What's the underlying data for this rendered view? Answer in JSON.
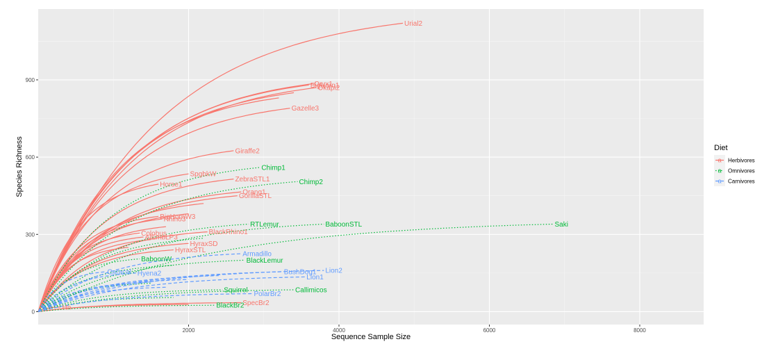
{
  "chart_data": {
    "type": "line",
    "title": "",
    "xlabel": "Sequence Sample Size",
    "ylabel": "Species Richness",
    "xlim": [
      0,
      8850
    ],
    "ylim": [
      -50,
      1175
    ],
    "xticks": [
      2000,
      4000,
      6000,
      8000
    ],
    "yticks": [
      0,
      300,
      600,
      900
    ],
    "xtick_labels": [
      "2000",
      "4000",
      "6000",
      "8000"
    ],
    "ytick_labels": [
      "0",
      "300",
      "600",
      "900"
    ],
    "legend": {
      "title": "Diet",
      "position": "right",
      "entries": [
        {
          "name": "Herbivores",
          "glyph": "a",
          "color": "#F8766D",
          "dash": ""
        },
        {
          "name": "Omnivores",
          "glyph": "a",
          "color": "#00BA38",
          "dash": "1.5,2.5"
        },
        {
          "name": "Carnivores",
          "glyph": "a",
          "color": "#619CFF",
          "dash": "5,3"
        }
      ]
    },
    "series": [
      {
        "name": "Urial2",
        "group": "Herbivores",
        "end": [
          4850,
          1120
        ]
      },
      {
        "name": "BigHorn1",
        "group": "Herbivores",
        "end": [
          3600,
          880
        ]
      },
      {
        "name": "Oryx1",
        "group": "Herbivores",
        "end": [
          3650,
          885
        ]
      },
      {
        "name": "Okapi2",
        "group": "Herbivores",
        "end": [
          3700,
          870
        ]
      },
      {
        "name": "Gazelle3",
        "group": "Herbivores",
        "end": [
          3350,
          790
        ]
      },
      {
        "name": "Giraffe2",
        "group": "Herbivores",
        "end": [
          2600,
          625
        ]
      },
      {
        "name": "SpgbkW",
        "group": "Herbivores",
        "end": [
          2000,
          535
        ]
      },
      {
        "name": "ZebraSTL1",
        "group": "Herbivores",
        "end": [
          2600,
          515
        ]
      },
      {
        "name": "Horse1",
        "group": "Herbivores",
        "end": [
          1600,
          495
        ]
      },
      {
        "name": "Orang1",
        "group": "Herbivores",
        "end": [
          2700,
          465
        ]
      },
      {
        "name": "GorillaSTL",
        "group": "Herbivores",
        "end": [
          2650,
          450
        ]
      },
      {
        "name": "BigHornW3",
        "group": "Herbivores",
        "end": [
          1600,
          370
        ]
      },
      {
        "name": "Rhino3",
        "group": "Herbivores",
        "end": [
          1650,
          360
        ]
      },
      {
        "name": "BlackRhino1",
        "group": "Herbivores",
        "end": [
          2250,
          310
        ]
      },
      {
        "name": "Colobus",
        "group": "Herbivores",
        "end": [
          1350,
          305
        ]
      },
      {
        "name": "AlEmbLP3",
        "group": "Herbivores",
        "end": [
          1400,
          290
        ]
      },
      {
        "name": "HyraxSD",
        "group": "Herbivores",
        "end": [
          2000,
          265
        ]
      },
      {
        "name": "HyraxSTL",
        "group": "Herbivores",
        "end": [
          1800,
          240
        ]
      },
      {
        "name": "SpecBr2",
        "group": "Herbivores",
        "end": [
          2700,
          35
        ]
      },
      {
        "name": "Hn",
        "group": "Herbivores",
        "end": [
          300,
          18
        ]
      },
      {
        "name": "Chimp1",
        "group": "Omnivores",
        "end": [
          2950,
          560
        ]
      },
      {
        "name": "Chimp2",
        "group": "Omnivores",
        "end": [
          3450,
          505
        ]
      },
      {
        "name": "RTLemur",
        "group": "Omnivores",
        "end": [
          2800,
          340
        ]
      },
      {
        "name": "BaboonSTL",
        "group": "Omnivores",
        "end": [
          3800,
          340
        ]
      },
      {
        "name": "Saki",
        "group": "Omnivores",
        "end": [
          6850,
          340
        ]
      },
      {
        "name": "BaboonW",
        "group": "Omnivores",
        "end": [
          1350,
          205
        ]
      },
      {
        "name": "BlackLemur",
        "group": "Omnivores",
        "end": [
          2750,
          200
        ]
      },
      {
        "name": "Squirrel",
        "group": "Omnivores",
        "end": [
          2450,
          85
        ]
      },
      {
        "name": "Callimicos",
        "group": "Omnivores",
        "end": [
          3400,
          85
        ]
      },
      {
        "name": "BlackBr2",
        "group": "Omnivores",
        "end": [
          2350,
          25
        ]
      },
      {
        "name": "Armadillo",
        "group": "Carnivores",
        "end": [
          2700,
          225
        ]
      },
      {
        "name": "Lion2",
        "group": "Carnivores",
        "end": [
          3800,
          160
        ]
      },
      {
        "name": "BushDog1",
        "group": "Carnivores",
        "end": [
          3250,
          155
        ]
      },
      {
        "name": "Lion1",
        "group": "Carnivores",
        "end": [
          3550,
          135
        ]
      },
      {
        "name": "Hyena2",
        "group": "Carnivores",
        "end": [
          1300,
          150
        ]
      },
      {
        "name": "Caracal",
        "group": "Carnivores",
        "end": [
          900,
          155
        ]
      },
      {
        "name": "PolarBr2",
        "group": "Carnivores",
        "end": [
          2850,
          70
        ]
      }
    ],
    "extra_curves": [
      {
        "group": "Herbivores",
        "end": [
          3400,
          850
        ]
      },
      {
        "group": "Herbivores",
        "end": [
          3200,
          830
        ]
      },
      {
        "group": "Herbivores",
        "end": [
          2200,
          420
        ]
      },
      {
        "group": "Herbivores",
        "end": [
          2000,
          380
        ]
      },
      {
        "group": "Herbivores",
        "end": [
          1700,
          330
        ]
      },
      {
        "group": "Herbivores",
        "end": [
          1500,
          280
        ]
      },
      {
        "group": "Herbivores",
        "end": [
          1200,
          250
        ]
      },
      {
        "group": "Herbivores",
        "end": [
          2000,
          28
        ]
      },
      {
        "group": "Omnivores",
        "end": [
          2200,
          285
        ]
      },
      {
        "group": "Omnivores",
        "end": [
          1800,
          180
        ]
      },
      {
        "group": "Omnivores",
        "end": [
          1500,
          110
        ]
      },
      {
        "group": "Omnivores",
        "end": [
          1800,
          55
        ]
      },
      {
        "group": "Carnivores",
        "end": [
          2400,
          140
        ]
      },
      {
        "group": "Carnivores",
        "end": [
          2000,
          125
        ]
      },
      {
        "group": "Carnivores",
        "end": [
          1500,
          115
        ]
      },
      {
        "group": "Carnivores",
        "end": [
          1700,
          95
        ]
      }
    ]
  }
}
